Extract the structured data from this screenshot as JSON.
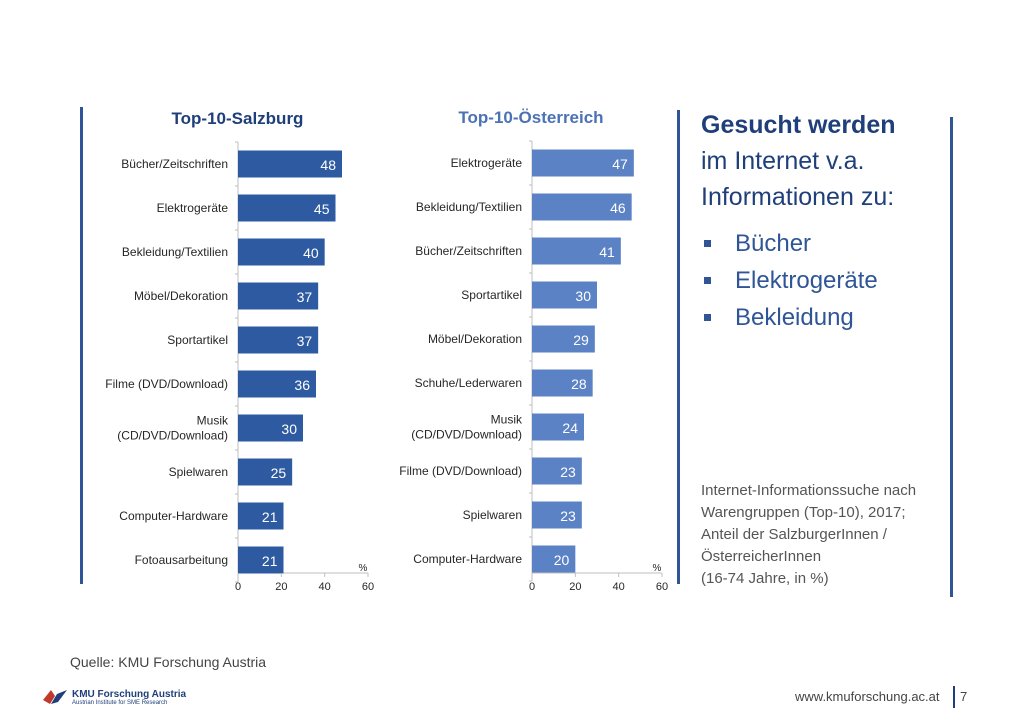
{
  "chart_data": [
    {
      "type": "bar",
      "orientation": "horizontal",
      "title": "Top-10-Salzburg",
      "categories": [
        "Bücher/Zeitschriften",
        "Elektrogeräte",
        "Bekleidung/Textilien",
        "Möbel/Dekoration",
        "Sportartikel",
        "Filme (DVD/Download)",
        "Musik\n(CD/DVD/Download)",
        "Spielwaren",
        "Computer-Hardware",
        "Fotoausarbeitung"
      ],
      "values": [
        48,
        45,
        40,
        37,
        37,
        36,
        30,
        25,
        21,
        21
      ],
      "xlabel": "%",
      "xlim": [
        0,
        60
      ],
      "xticks": [
        "0",
        "20",
        "40",
        "60"
      ],
      "bar_color": "#2d5aa0",
      "title_color": "#1f3f7a"
    },
    {
      "type": "bar",
      "orientation": "horizontal",
      "title": "Top-10-Österreich",
      "categories": [
        "Elektrogeräte",
        "Bekleidung/Textilien",
        "Bücher/Zeitschriften",
        "Sportartikel",
        "Möbel/Dekoration",
        "Schuhe/Lederwaren",
        "Musik\n(CD/DVD/Download)",
        "Filme (DVD/Download)",
        "Spielwaren",
        "Computer-Hardware"
      ],
      "values": [
        47,
        46,
        41,
        30,
        29,
        28,
        24,
        23,
        23,
        20
      ],
      "xlabel": "%",
      "xlim": [
        0,
        60
      ],
      "xticks": [
        "0",
        "20",
        "40",
        "60"
      ],
      "bar_color": "#5b82c4",
      "title_color": "#4a72b5"
    }
  ],
  "sidebar": {
    "title_bold": "Gesucht werden",
    "title_line2": "im Internet v.a.",
    "title_line3": "Informationen zu:",
    "bullets": [
      "Bücher",
      "Elektrogeräte",
      "Bekleidung"
    ],
    "note_lines": [
      "Internet-Informationssuche nach",
      "Warengruppen (Top-10), 2017;",
      "Anteil der SalzburgerInnen /",
      "ÖsterreicherInnen",
      "(16-74 Jahre, in %)"
    ]
  },
  "footer": {
    "source": "Quelle: KMU Forschung Austria",
    "logo_line1": "KMU Forschung Austria",
    "logo_line2": "Austrian Institute for SME Research",
    "website": "www.kmuforschung.ac.at",
    "page_number": "7"
  },
  "colors": {
    "accent": "#2f5597",
    "dark_blue": "#1f3f7a",
    "divider": "#2f5597"
  }
}
